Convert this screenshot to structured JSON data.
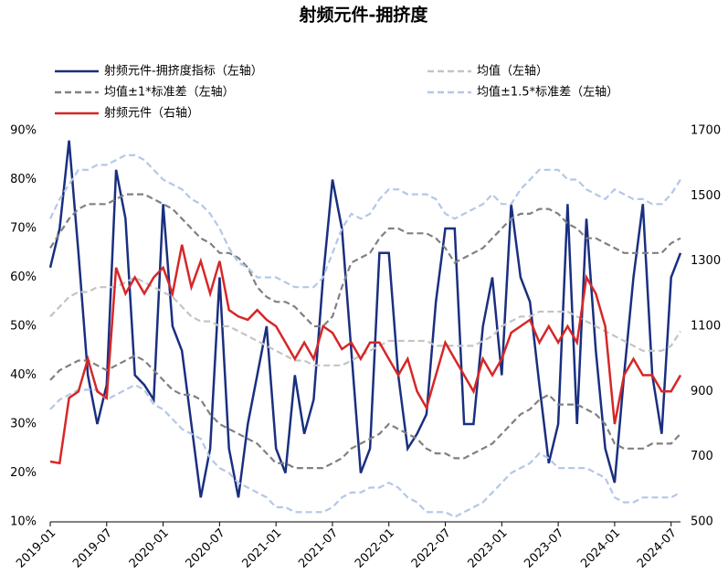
{
  "chart_data": {
    "type": "line",
    "title": "射频元件-拥挤度",
    "x": [
      "2019-01",
      "2019-02",
      "2019-03",
      "2019-04",
      "2019-05",
      "2019-06",
      "2019-07",
      "2019-08",
      "2019-09",
      "2019-10",
      "2019-11",
      "2019-12",
      "2020-01",
      "2020-02",
      "2020-03",
      "2020-04",
      "2020-05",
      "2020-06",
      "2020-07",
      "2020-08",
      "2020-09",
      "2020-10",
      "2020-11",
      "2020-12",
      "2021-01",
      "2021-02",
      "2021-03",
      "2021-04",
      "2021-05",
      "2021-06",
      "2021-07",
      "2021-08",
      "2021-09",
      "2021-10",
      "2021-11",
      "2021-12",
      "2022-01",
      "2022-02",
      "2022-03",
      "2022-04",
      "2022-05",
      "2022-06",
      "2022-07",
      "2022-08",
      "2022-09",
      "2022-10",
      "2022-11",
      "2022-12",
      "2023-01",
      "2023-02",
      "2023-03",
      "2023-04",
      "2023-05",
      "2023-06",
      "2023-07",
      "2023-08",
      "2023-09",
      "2023-10",
      "2023-11",
      "2023-12",
      "2024-01",
      "2024-02",
      "2024-03",
      "2024-04",
      "2024-05",
      "2024-06",
      "2024-07",
      "2024-08"
    ],
    "xlim": [
      "2019-01",
      "2024-08"
    ],
    "xticks": [
      "2019-01",
      "2019-07",
      "2020-01",
      "2020-07",
      "2021-01",
      "2021-07",
      "2022-01",
      "2022-07",
      "2023-01",
      "2023-07",
      "2024-01",
      "2024-07"
    ],
    "ylim": [
      10,
      90
    ],
    "yticks": [
      {
        "value": 10,
        "label": "10%"
      },
      {
        "value": 20,
        "label": "20%"
      },
      {
        "value": 30,
        "label": "30%"
      },
      {
        "value": 40,
        "label": "40%"
      },
      {
        "value": 50,
        "label": "50%"
      },
      {
        "value": 60,
        "label": "60%"
      },
      {
        "value": 70,
        "label": "70%"
      },
      {
        "value": 80,
        "label": "80%"
      },
      {
        "value": 90,
        "label": "90%"
      }
    ],
    "y2lim": [
      500,
      1700
    ],
    "y2ticks": [
      500,
      700,
      900,
      1100,
      1300,
      1500,
      1700
    ],
    "series": [
      {
        "name": "射频元件-拥挤度指标（左轴）",
        "color": "#1a2f80",
        "dash": "solid",
        "values": [
          62,
          70,
          88,
          65,
          40,
          30,
          38,
          82,
          72,
          40,
          38,
          35,
          75,
          50,
          45,
          30,
          15,
          25,
          60,
          25,
          15,
          30,
          40,
          50,
          25,
          20,
          40,
          28,
          35,
          60,
          80,
          70,
          45,
          20,
          25,
          65,
          65,
          40,
          25,
          28,
          32,
          55,
          70,
          70,
          30,
          30,
          50,
          60,
          40,
          75,
          60,
          55,
          38,
          22,
          30,
          75,
          30,
          72,
          45,
          25,
          18,
          40,
          60,
          75,
          40,
          28,
          60,
          65
        ]
      },
      {
        "name": "均值（左轴）",
        "color": "#c4c4c4",
        "dash": "dashed",
        "values": [
          52,
          54,
          56,
          57,
          57,
          58,
          58,
          58,
          59,
          60,
          59,
          58,
          57,
          56,
          54,
          52,
          51,
          51,
          50,
          50,
          49,
          48,
          47,
          46,
          45,
          44,
          43,
          43,
          42,
          42,
          42,
          42,
          43,
          44,
          45,
          46,
          47,
          47,
          47,
          47,
          47,
          46,
          46,
          46,
          46,
          46,
          47,
          48,
          50,
          51,
          52,
          52,
          53,
          53,
          53,
          53,
          52,
          51,
          50,
          49,
          48,
          47,
          46,
          45,
          45,
          45,
          46,
          49
        ]
      },
      {
        "name": "均值±1*标准差（左轴）",
        "color": "#808080",
        "dash": "dashed",
        "values": [
          66,
          69,
          72,
          74,
          75,
          75,
          75,
          76,
          77,
          77,
          77,
          76,
          75,
          74,
          72,
          70,
          68,
          67,
          65,
          65,
          64,
          62,
          58,
          56,
          55,
          55,
          54,
          52,
          50,
          50,
          52,
          58,
          63,
          64,
          65,
          68,
          70,
          70,
          69,
          69,
          69,
          68,
          66,
          63,
          64,
          65,
          66,
          68,
          70,
          72,
          73,
          73,
          74,
          74,
          73,
          71,
          70,
          68,
          68,
          67,
          66,
          65,
          65,
          65,
          65,
          65,
          67,
          68
        ]
      },
      {
        "color": "#808080",
        "dash": "dashed",
        "values": [
          39,
          41,
          42,
          43,
          43,
          42,
          41,
          42,
          43,
          44,
          43,
          41,
          39,
          37,
          36,
          36,
          35,
          32,
          30,
          29,
          28,
          27,
          26,
          24,
          22,
          22,
          21,
          21,
          21,
          21,
          22,
          23,
          25,
          26,
          27,
          28,
          30,
          29,
          28,
          27,
          25,
          24,
          24,
          23,
          23,
          24,
          25,
          26,
          28,
          30,
          32,
          33,
          35,
          36,
          34,
          34,
          34,
          33,
          32,
          30,
          26,
          25,
          25,
          25,
          26,
          26,
          26,
          28
        ]
      },
      {
        "name": "均值±1.5*标准差（左轴）",
        "color": "#b4c7e7",
        "dash": "dashed",
        "values": [
          72,
          76,
          79,
          82,
          82,
          83,
          83,
          84,
          85,
          85,
          84,
          82,
          80,
          79,
          78,
          76,
          75,
          73,
          70,
          66,
          63,
          62,
          60,
          60,
          60,
          59,
          58,
          58,
          58,
          60,
          65,
          70,
          73,
          72,
          73,
          76,
          78,
          78,
          77,
          77,
          77,
          76,
          73,
          72,
          73,
          74,
          75,
          77,
          75,
          75,
          78,
          80,
          82,
          82,
          82,
          80,
          80,
          78,
          77,
          76,
          78,
          77,
          76,
          76,
          75,
          75,
          77,
          80
        ]
      },
      {
        "color": "#b4c7e7",
        "dash": "dashed",
        "values": [
          33,
          35,
          36,
          37,
          37,
          37,
          35,
          36,
          37,
          38,
          37,
          34,
          33,
          31,
          29,
          28,
          27,
          23,
          21,
          20,
          18,
          17,
          16,
          15,
          13,
          13,
          12,
          12,
          12,
          12,
          13,
          15,
          16,
          16,
          17,
          17,
          18,
          17,
          15,
          14,
          12,
          12,
          12,
          11,
          12,
          13,
          14,
          16,
          18,
          20,
          21,
          22,
          24,
          23,
          21,
          21,
          21,
          21,
          20,
          19,
          15,
          14,
          14,
          15,
          15,
          15,
          15,
          16
        ]
      },
      {
        "name": "射频元件（右轴）",
        "color": "#d62728",
        "dash": "solid",
        "axis": "y2",
        "values": [
          685,
          680,
          880,
          900,
          1000,
          900,
          880,
          1280,
          1200,
          1250,
          1200,
          1250,
          1280,
          1200,
          1350,
          1220,
          1300,
          1200,
          1300,
          1150,
          1130,
          1120,
          1150,
          1120,
          1100,
          1050,
          1000,
          1050,
          1000,
          1100,
          1080,
          1030,
          1050,
          1000,
          1050,
          1050,
          1000,
          950,
          1000,
          900,
          850,
          950,
          1050,
          1000,
          950,
          900,
          1000,
          950,
          1000,
          1080,
          1100,
          1120,
          1050,
          1100,
          1050,
          1100,
          1050,
          1250,
          1200,
          1100,
          800,
          950,
          1000,
          950,
          950,
          900,
          900,
          950
        ]
      }
    ]
  }
}
